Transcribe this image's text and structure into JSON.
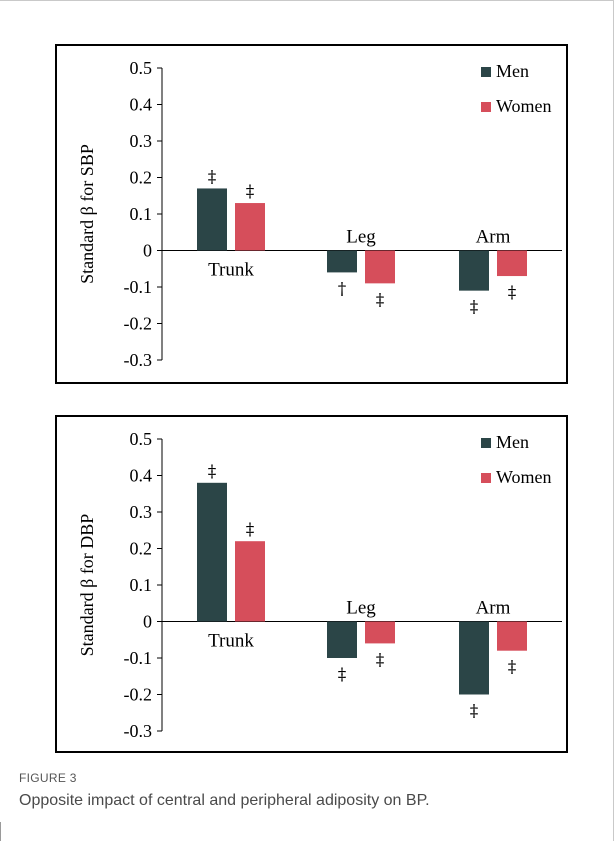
{
  "colors": {
    "men": "#2b4547",
    "women": "#d64e5b"
  },
  "chart_data": [
    {
      "type": "bar",
      "ylabel": "Standard β for SBP",
      "ylim": [
        -0.3,
        0.5
      ],
      "yticks": [
        "0.5",
        "0.4",
        "0.3",
        "0.2",
        "0.1",
        "0",
        "-0.1",
        "-0.2",
        "-0.3"
      ],
      "categories": [
        "Trunk",
        "Leg",
        "Arm"
      ],
      "series": [
        {
          "name": "Men",
          "values": [
            0.17,
            -0.06,
            -0.11
          ],
          "marks": [
            "‡",
            "†",
            "‡"
          ]
        },
        {
          "name": "Women",
          "values": [
            0.13,
            -0.09,
            -0.07
          ],
          "marks": [
            "‡",
            "‡",
            "‡"
          ]
        }
      ],
      "legend_position": "top-right",
      "grid": false
    },
    {
      "type": "bar",
      "ylabel": "Standard β for DBP",
      "ylim": [
        -0.3,
        0.5
      ],
      "yticks": [
        "0.5",
        "0.4",
        "0.3",
        "0.2",
        "0.1",
        "0",
        "-0.1",
        "-0.2",
        "-0.3"
      ],
      "categories": [
        "Trunk",
        "Leg",
        "Arm"
      ],
      "series": [
        {
          "name": "Men",
          "values": [
            0.38,
            -0.1,
            -0.2
          ],
          "marks": [
            "‡",
            "‡",
            "‡"
          ]
        },
        {
          "name": "Women",
          "values": [
            0.22,
            -0.06,
            -0.08
          ],
          "marks": [
            "‡",
            "‡",
            "‡"
          ]
        }
      ],
      "legend_position": "top-right",
      "grid": false
    }
  ],
  "caption": {
    "label": "FIGURE 3",
    "text": "Opposite impact of central and peripheral adiposity on BP."
  }
}
